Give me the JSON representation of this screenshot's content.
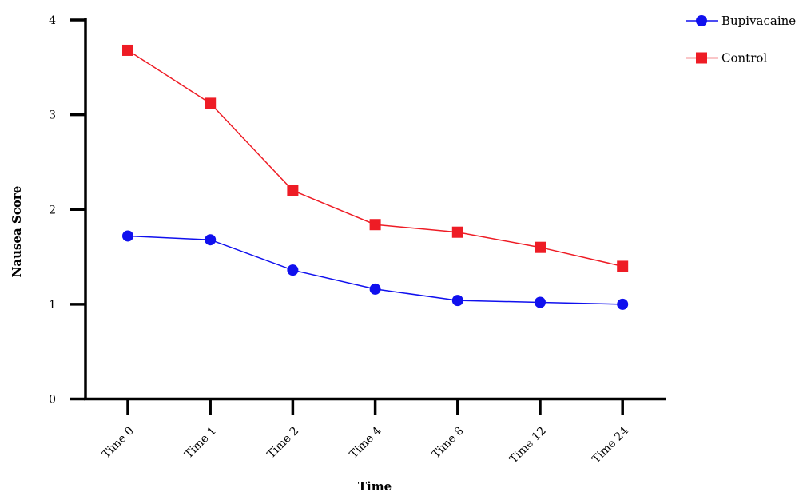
{
  "chart_data": {
    "type": "line",
    "title": "",
    "xlabel": "Time",
    "ylabel": "Nausea Score",
    "categories": [
      "Time 0",
      "Time 1",
      "Time 2",
      "Time 4",
      "Time 8",
      "Time 12",
      "Time 24"
    ],
    "ylim": [
      0,
      4
    ],
    "yticks": [
      "0",
      "1",
      "2",
      "3",
      "4"
    ],
    "grid": false,
    "legend_position": "top-right",
    "series": [
      {
        "name": "Bupivacaine",
        "marker": "circle",
        "color": "#1010ee",
        "values": [
          1.72,
          1.68,
          1.36,
          1.16,
          1.04,
          1.02,
          1.0
        ]
      },
      {
        "name": "Control",
        "marker": "square",
        "color": "#ee1c25",
        "values": [
          3.68,
          3.12,
          2.2,
          1.84,
          1.76,
          1.6,
          1.4
        ]
      }
    ]
  }
}
